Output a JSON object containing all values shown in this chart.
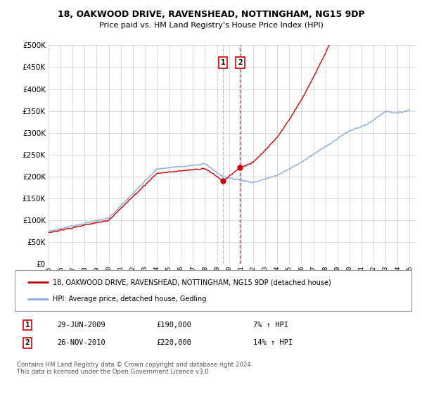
{
  "title": "18, OAKWOOD DRIVE, RAVENSHEAD, NOTTINGHAM, NG15 9DP",
  "subtitle": "Price paid vs. HM Land Registry's House Price Index (HPI)",
  "legend_line1": "18, OAKWOOD DRIVE, RAVENSHEAD, NOTTINGHAM, NG15 9DP (detached house)",
  "legend_line2": "HPI: Average price, detached house, Gedling",
  "transaction1_label": "1",
  "transaction1_date": "29-JUN-2009",
  "transaction1_price": "£190,000",
  "transaction1_hpi": "7% ↑ HPI",
  "transaction2_label": "2",
  "transaction2_date": "26-NOV-2010",
  "transaction2_price": "£220,000",
  "transaction2_hpi": "14% ↑ HPI",
  "footnote": "Contains HM Land Registry data © Crown copyright and database right 2024.\nThis data is licensed under the Open Government Licence v3.0.",
  "line_color_red": "#cc0000",
  "line_color_blue": "#88aadd",
  "marker_color": "#cc0000",
  "vline1_color": "#aabbdd",
  "vline2_color": "#cc0000",
  "background_color": "#ffffff",
  "grid_color": "#cccccc",
  "ylim": [
    0,
    500000
  ],
  "yticks": [
    0,
    50000,
    100000,
    150000,
    200000,
    250000,
    300000,
    350000,
    400000,
    450000,
    500000
  ],
  "xlim_start": 1995.0,
  "xlim_end": 2025.5,
  "transaction1_x": 2009.5,
  "transaction2_x": 2010.92,
  "transaction1_y": 190000,
  "transaction2_y": 220000
}
